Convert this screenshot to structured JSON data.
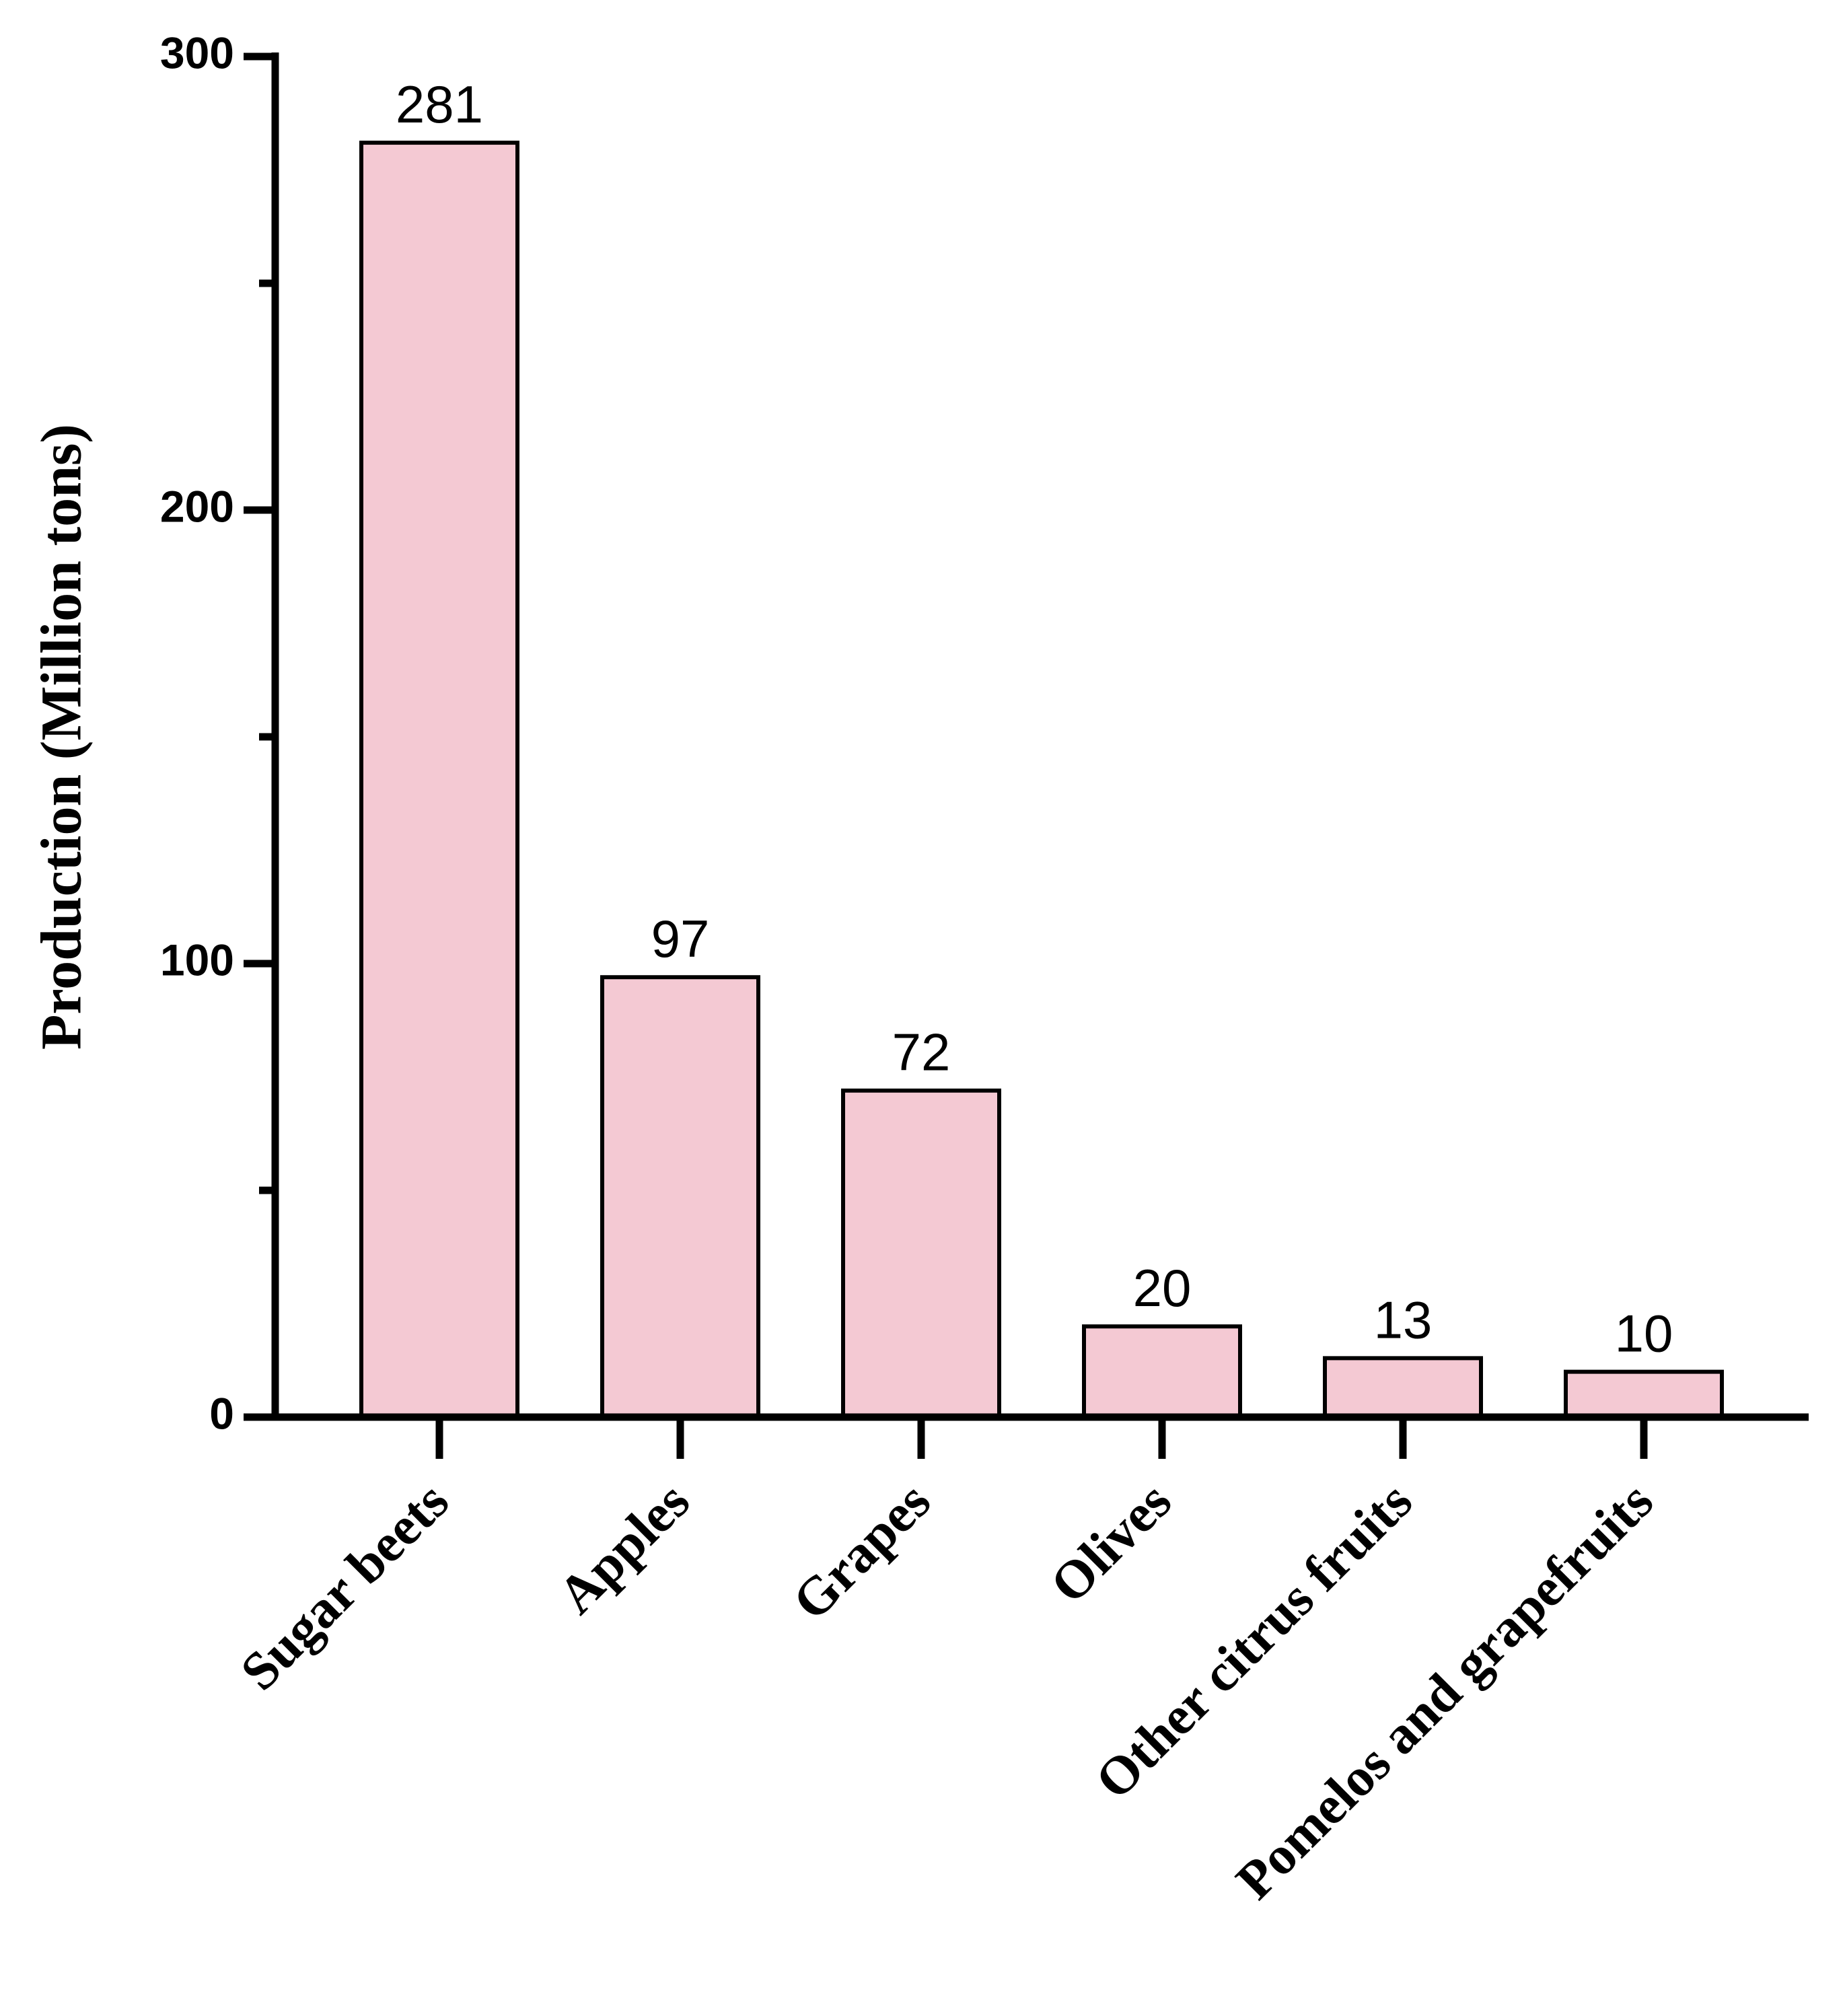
{
  "chart_data": {
    "type": "bar",
    "y_label": "Production (Million tons)",
    "categories": [
      "Sugar beets",
      "Apples",
      "Grapes",
      "Olives",
      "Other citrus fruits",
      "Pomelos and grapefruits"
    ],
    "values": [
      281,
      97,
      72,
      20,
      13,
      10
    ],
    "color": "#f4c9d3",
    "ylim": [
      0,
      300
    ],
    "yticks": [
      0,
      100,
      200,
      300
    ],
    "yminorticks": [
      50,
      150,
      250
    ],
    "grid": false
  }
}
